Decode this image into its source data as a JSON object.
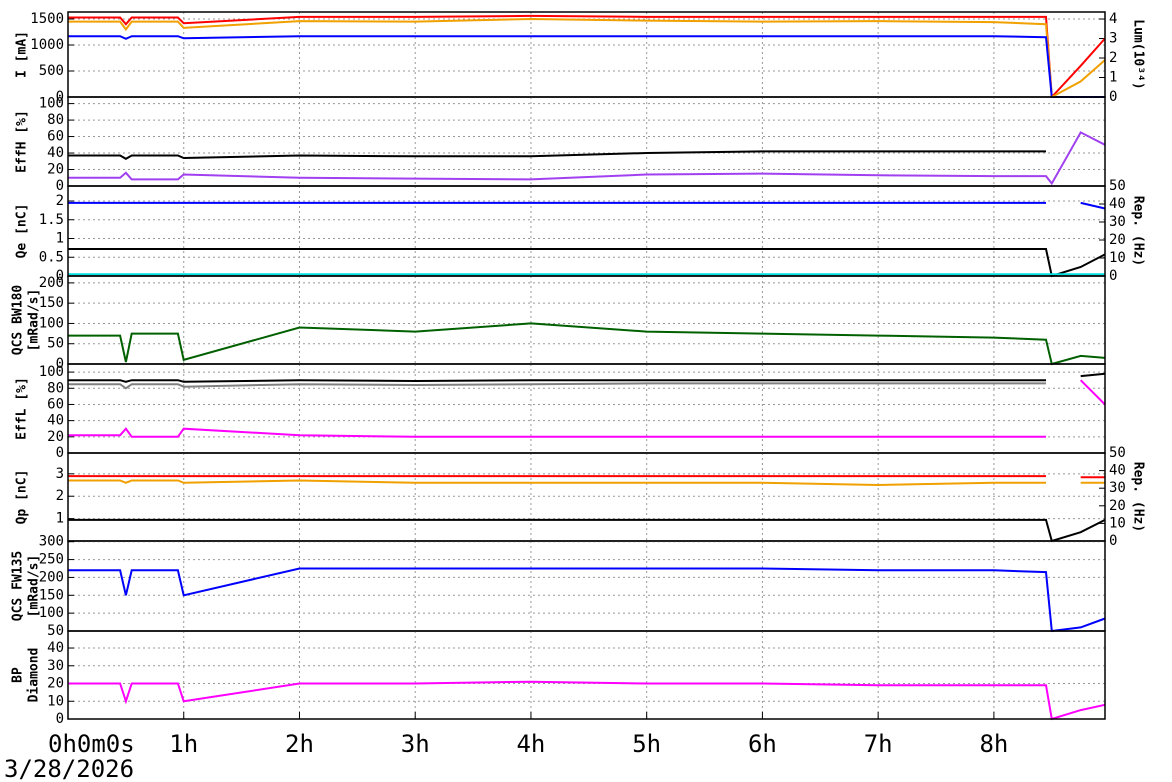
{
  "time_axis": {
    "xlim": [
      0,
      8.96
    ],
    "xticks": [
      {
        "value": 0,
        "label": "0h0m0s"
      },
      {
        "value": 1,
        "label": "1h"
      },
      {
        "value": 2,
        "label": "2h"
      },
      {
        "value": 3,
        "label": "3h"
      },
      {
        "value": 4,
        "label": "4h"
      },
      {
        "value": 5,
        "label": "5h"
      },
      {
        "value": 6,
        "label": "6h"
      },
      {
        "value": 7,
        "label": "7h"
      },
      {
        "value": 8,
        "label": "8h"
      }
    ],
    "date": "3/28/2026"
  },
  "chart_data": [
    {
      "type": "line",
      "ylabel": [
        "I [mA]"
      ],
      "y2label": [
        "Lum(10³⁴)"
      ],
      "x": [
        0,
        0.45,
        0.5,
        0.55,
        0.95,
        1.0,
        2,
        3,
        4,
        5,
        6,
        7,
        8,
        8.45,
        8.5,
        8.75,
        8.96
      ],
      "ylim": [
        0,
        1635
      ],
      "yticks": [
        0,
        500,
        1000,
        1500
      ],
      "y2lim": [
        0,
        4.36
      ],
      "y2ticks": [
        0,
        1,
        2,
        3,
        4
      ],
      "grid": true,
      "series": [
        {
          "color": "#ff0000",
          "values": [
            1530,
            1530,
            1400,
            1530,
            1530,
            1420,
            1540,
            1540,
            1560,
            1540,
            1540,
            1540,
            1540,
            1540,
            0,
            0,
            0
          ]
        },
        {
          "color": "#f0a000",
          "values": [
            1450,
            1450,
            1300,
            1450,
            1450,
            1330,
            1460,
            1450,
            1500,
            1470,
            1450,
            1460,
            1440,
            1400,
            0,
            0,
            0
          ]
        },
        {
          "color": "#0000ff",
          "values": [
            1170,
            1170,
            1120,
            1170,
            1170,
            1130,
            1170,
            1170,
            1170,
            1170,
            1170,
            1170,
            1170,
            1150,
            0,
            0,
            0
          ]
        },
        {
          "color": "#ff0000",
          "axis": "y2",
          "values": [
            null,
            null,
            null,
            null,
            null,
            null,
            null,
            null,
            null,
            null,
            null,
            null,
            null,
            null,
            0,
            1.6,
            3.0
          ]
        },
        {
          "color": "#f0a000",
          "axis": "y2",
          "values": [
            null,
            null,
            null,
            null,
            null,
            null,
            null,
            null,
            null,
            null,
            null,
            null,
            null,
            null,
            0,
            0.8,
            1.9
          ]
        }
      ]
    },
    {
      "type": "line",
      "ylabel": [
        "EffH [%]"
      ],
      "x": [
        0,
        0.45,
        0.5,
        0.55,
        0.95,
        1.0,
        2,
        3,
        4,
        5,
        6,
        7,
        8,
        8.45,
        8.5,
        8.75,
        8.96
      ],
      "ylim": [
        0,
        108
      ],
      "yticks": [
        0,
        20,
        40,
        60,
        80,
        100
      ],
      "grid": true,
      "series": [
        {
          "color": "#000000",
          "values": [
            37,
            37,
            33,
            37,
            37,
            34,
            37,
            36,
            36,
            40,
            42,
            42,
            42,
            42,
            null,
            null,
            null
          ]
        },
        {
          "color": "#a040f0",
          "values": [
            10,
            10,
            16,
            8,
            8,
            14,
            10,
            9,
            8,
            14,
            15,
            13,
            12,
            12,
            3,
            65,
            50
          ]
        }
      ]
    },
    {
      "type": "line",
      "ylabel": [
        "Qe [nC]"
      ],
      "y2label": [
        "Rep. (Hz)"
      ],
      "x": [
        0,
        0.45,
        0.5,
        0.55,
        0.95,
        1.0,
        2,
        3,
        4,
        5,
        6,
        7,
        8,
        8.45,
        8.5,
        8.75,
        8.96
      ],
      "ylim": [
        0,
        2.4
      ],
      "yticks": [
        0,
        0.5,
        1,
        1.5,
        2
      ],
      "y2lim": [
        0,
        50
      ],
      "y2ticks": [
        0,
        10,
        20,
        30,
        40,
        50
      ],
      "grid": true,
      "series": [
        {
          "color": "#0000ff",
          "values": [
            1.95,
            1.95,
            1.95,
            1.95,
            1.95,
            1.95,
            1.95,
            1.95,
            1.95,
            1.95,
            1.95,
            1.95,
            1.95,
            1.95,
            null,
            1.95,
            1.8
          ]
        },
        {
          "color": "#000000",
          "axis": "y2",
          "values": [
            15,
            15,
            15,
            15,
            15,
            15,
            15,
            15,
            15,
            15,
            15,
            15,
            15,
            15,
            0,
            5,
            12
          ]
        },
        {
          "color": "#00e0e0",
          "axis": "y2",
          "values": [
            1,
            1,
            1,
            1,
            1,
            1,
            1,
            1,
            1,
            1,
            1,
            1,
            1,
            1,
            1,
            1,
            1
          ]
        }
      ]
    },
    {
      "type": "line",
      "ylabel": [
        "QCS BW180",
        "[mRad/s]"
      ],
      "x": [
        0,
        0.45,
        0.5,
        0.55,
        0.95,
        1.0,
        2,
        3,
        4,
        5,
        6,
        7,
        8,
        8.45,
        8.5,
        8.75,
        8.96
      ],
      "ylim": [
        0,
        217
      ],
      "yticks": [
        0,
        50,
        100,
        150,
        200
      ],
      "grid": true,
      "series": [
        {
          "color": "#006000",
          "values": [
            70,
            70,
            5,
            75,
            75,
            10,
            90,
            80,
            100,
            80,
            75,
            70,
            65,
            60,
            0,
            20,
            15
          ]
        }
      ]
    },
    {
      "type": "line",
      "ylabel": [
        "EffL [%]"
      ],
      "x": [
        0,
        0.45,
        0.5,
        0.55,
        0.95,
        1.0,
        2,
        3,
        4,
        5,
        6,
        7,
        8,
        8.45,
        8.5,
        8.75,
        8.96
      ],
      "ylim": [
        0,
        110
      ],
      "yticks": [
        0,
        20,
        40,
        60,
        80,
        100
      ],
      "grid": true,
      "series": [
        {
          "color": "#000000",
          "values": [
            90,
            90,
            88,
            90,
            90,
            88,
            90,
            89,
            90,
            90,
            90,
            90,
            90,
            90,
            null,
            95,
            98
          ]
        },
        {
          "color": "#808080",
          "values": [
            85,
            85,
            80,
            85,
            85,
            82,
            85,
            84,
            85,
            86,
            86,
            86,
            86,
            86,
            null,
            null,
            null
          ]
        },
        {
          "color": "#ff00ff",
          "values": [
            22,
            22,
            30,
            20,
            20,
            30,
            22,
            20,
            20,
            20,
            20,
            20,
            20,
            20,
            null,
            90,
            60
          ]
        }
      ]
    },
    {
      "type": "line",
      "ylabel": [
        "Qp [nC]"
      ],
      "y2label": [
        "Rep. (Hz)"
      ],
      "x": [
        0,
        0.45,
        0.5,
        0.55,
        0.95,
        1.0,
        2,
        3,
        4,
        5,
        6,
        7,
        8,
        8.45,
        8.5,
        8.75,
        8.96
      ],
      "ylim": [
        0,
        3.93
      ],
      "yticks": [
        1,
        2,
        3
      ],
      "y2lim": [
        0,
        50
      ],
      "y2ticks": [
        0,
        10,
        20,
        30,
        40,
        50
      ],
      "grid": true,
      "series": [
        {
          "color": "#f0a000",
          "values": [
            2.7,
            2.7,
            2.6,
            2.7,
            2.7,
            2.6,
            2.7,
            2.6,
            2.6,
            2.6,
            2.6,
            2.5,
            2.6,
            2.6,
            null,
            2.6,
            2.6
          ]
        },
        {
          "color": "#ff0000",
          "values": [
            2.9,
            2.9,
            2.9,
            2.9,
            2.9,
            2.9,
            2.9,
            2.9,
            2.9,
            2.9,
            2.9,
            2.9,
            2.9,
            2.9,
            null,
            2.85,
            2.85
          ]
        },
        {
          "color": "#000000",
          "axis": "y2",
          "values": [
            12,
            12,
            12,
            12,
            12,
            12,
            12,
            12,
            12,
            12,
            12,
            12,
            12,
            12,
            0,
            5,
            12
          ]
        }
      ]
    },
    {
      "type": "line",
      "ylabel": [
        "QCS FW135",
        "[mRad/s]"
      ],
      "x": [
        0,
        0.45,
        0.5,
        0.55,
        0.95,
        1.0,
        2,
        3,
        4,
        5,
        6,
        7,
        8,
        8.45,
        8.5,
        8.75,
        8.96
      ],
      "ylim": [
        50,
        302
      ],
      "yticks": [
        50,
        100,
        150,
        200,
        250,
        300
      ],
      "grid": true,
      "series": [
        {
          "color": "#0000ff",
          "values": [
            220,
            220,
            150,
            220,
            220,
            150,
            225,
            225,
            225,
            225,
            225,
            220,
            220,
            215,
            50,
            60,
            85
          ]
        }
      ]
    },
    {
      "type": "line",
      "ylabel": [
        "BP",
        "Diamond"
      ],
      "x": [
        0,
        0.45,
        0.5,
        0.55,
        0.95,
        1.0,
        2,
        3,
        4,
        5,
        6,
        7,
        8,
        8.45,
        8.5,
        8.75,
        8.96
      ],
      "ylim": [
        0,
        49.6
      ],
      "yticks": [
        0,
        10,
        20,
        30,
        40
      ],
      "grid": true,
      "series": [
        {
          "color": "#ff00ff",
          "values": [
            20,
            20,
            10,
            20,
            20,
            10,
            20,
            20,
            21,
            20,
            20,
            19,
            19,
            19,
            0,
            5,
            8
          ]
        }
      ]
    }
  ]
}
